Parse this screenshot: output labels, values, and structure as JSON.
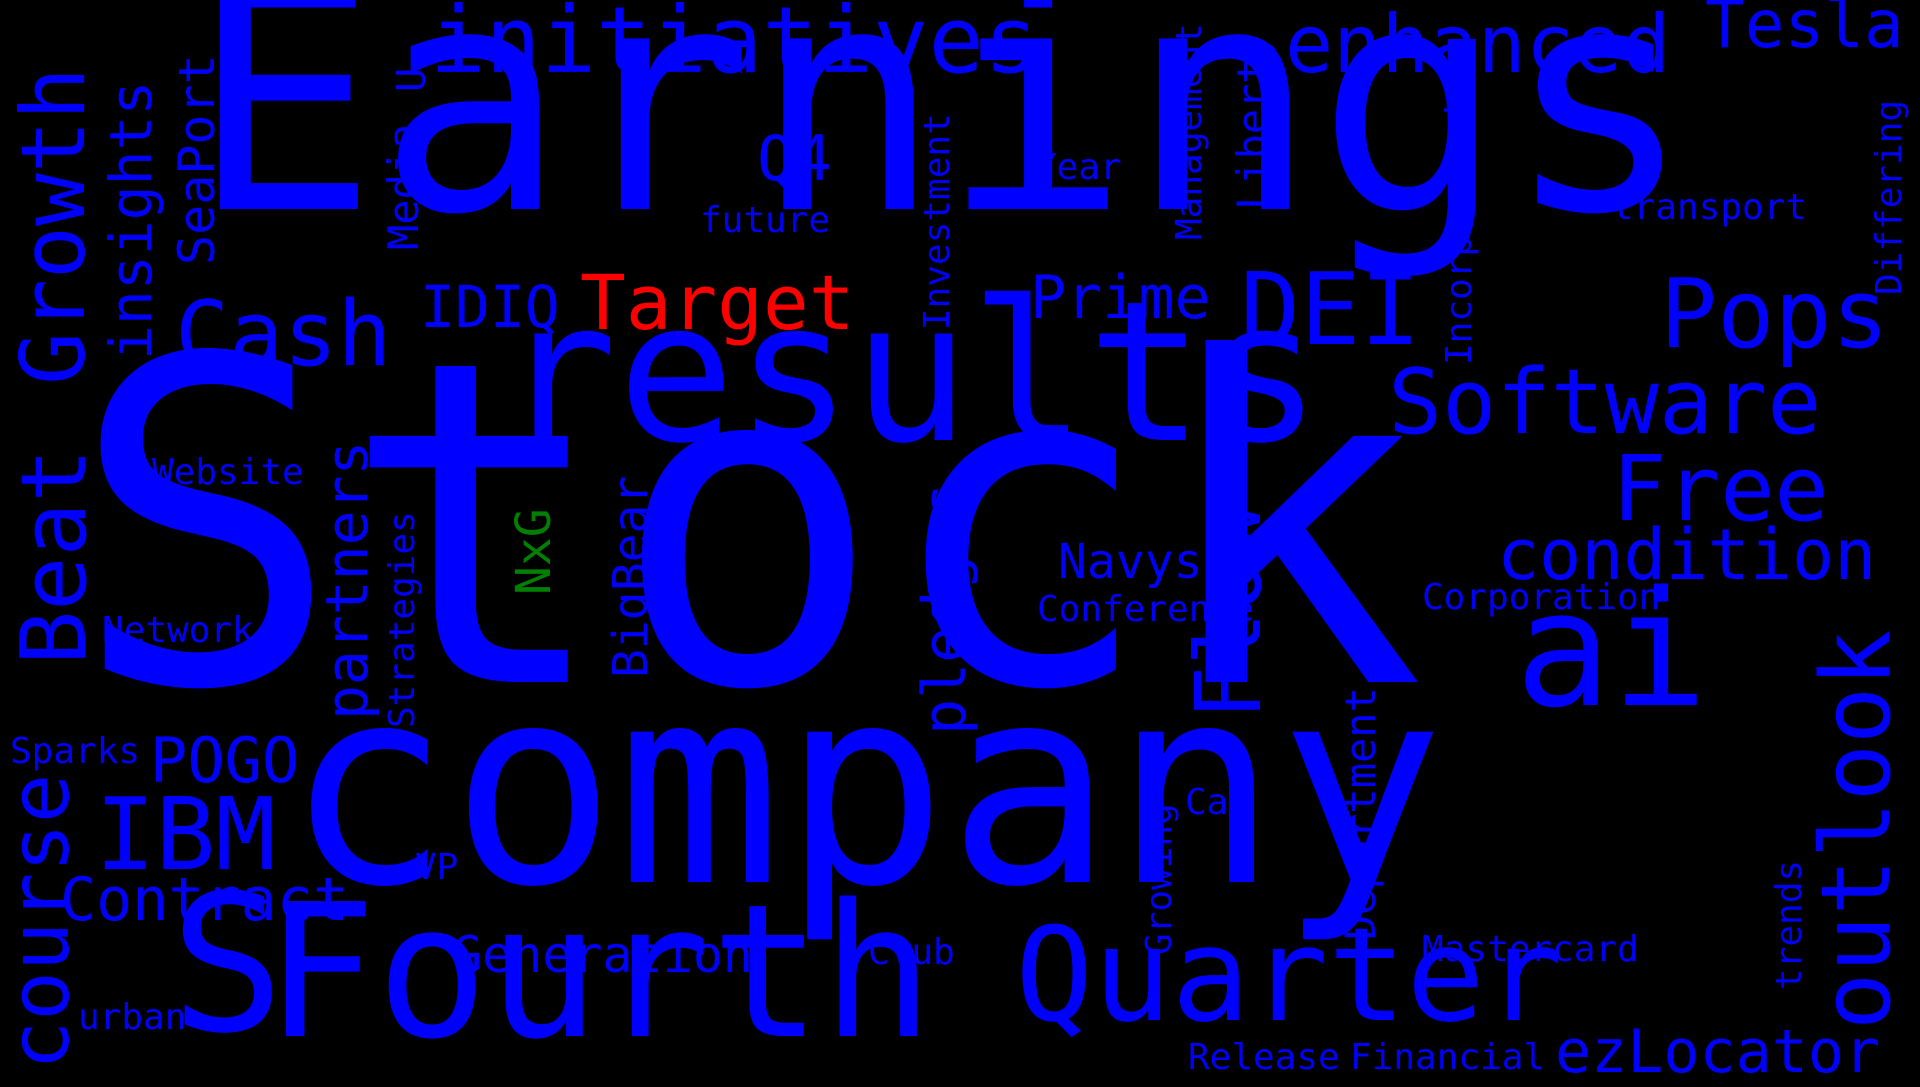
{
  "colors": {
    "background": "#000000",
    "primary": "#0000ff",
    "accent_red": "#ff0000",
    "accent_green": "#008000"
  },
  "words": {
    "stock": "Stock",
    "earnings": "Earnings",
    "company": "company",
    "results": "results",
    "fourth": "Fourth",
    "quarter": "Quarter",
    "ai": "ai",
    "s": "S",
    "initiatives": "initiatives",
    "enhanced": "enhanced",
    "tesla": "Tesla",
    "growth": "Growth",
    "insights": "insights",
    "seaport": "SeaPort",
    "media": "Media",
    "u": "U",
    "q4": "Q4",
    "future": "future",
    "year": "Year",
    "management": "Management",
    "liberty": "Liberty",
    "incorporated": "Incorporated",
    "transport": "transport",
    "differing": "Differing",
    "cash": "Cash",
    "idiq": "IDIQ",
    "target": "Target",
    "investment": "Investment",
    "prime": "Prime",
    "dei": "DEI",
    "pops": "Pops",
    "software": "Software",
    "beat": "Beat",
    "website": "Website",
    "partners": "partners",
    "strategies": "Strategies",
    "nxg": "NxG",
    "bigbear": "BigBear",
    "pledges": "pledges",
    "flow": "Flow",
    "free": "Free",
    "condition": "condition",
    "navys": "Navys",
    "conference": "Conference",
    "corporation": "Corporation",
    "outlook": "outlook",
    "network": "Network",
    "sparks": "Sparks",
    "pogo": "POGO",
    "course": "course",
    "ibm": "IBM",
    "contract": "Contract",
    "vp": "VP",
    "urban": "urban",
    "generation": "Generation",
    "club": "Club",
    "growing": "Growing",
    "car": "Car",
    "department": "Department",
    "mastercard": "Mastercard",
    "trends": "trends",
    "release": "Release",
    "financial": "Financial",
    "ezlocator": "ezLocator"
  }
}
